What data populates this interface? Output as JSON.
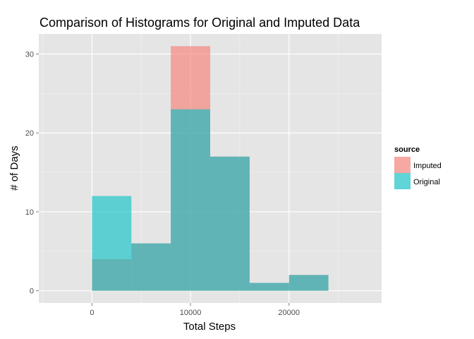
{
  "chart_data": {
    "type": "bar",
    "title": "Comparison of Histograms for Original and Imputed Data",
    "xlabel": "Total Steps",
    "ylabel": "# of Days",
    "xlim": [
      -5400,
      29400
    ],
    "ylim": [
      -1.55,
      32.55
    ],
    "x_ticks": [
      0,
      10000,
      20000
    ],
    "x_tick_labels": [
      "0",
      "10000",
      "20000"
    ],
    "y_ticks": [
      0,
      10,
      20,
      30
    ],
    "y_tick_labels": [
      "0",
      "10",
      "20",
      "30"
    ],
    "bin_edges": [
      0,
      4000,
      8000,
      12000,
      16000,
      20000,
      24000
    ],
    "series": [
      {
        "name": "Imputed",
        "color": "#F8766D",
        "values": [
          4,
          6,
          31,
          17,
          1,
          2
        ]
      },
      {
        "name": "Original",
        "color": "#00BFC4",
        "values": [
          12,
          6,
          23,
          17,
          1,
          2
        ]
      }
    ],
    "bar_opacity": 0.6,
    "grid": true,
    "panel_background": "#E5E5E5",
    "grid_color": "#FFFFFF",
    "legend": {
      "title": "source",
      "position": "right",
      "entries": [
        "Imputed",
        "Original"
      ]
    }
  }
}
